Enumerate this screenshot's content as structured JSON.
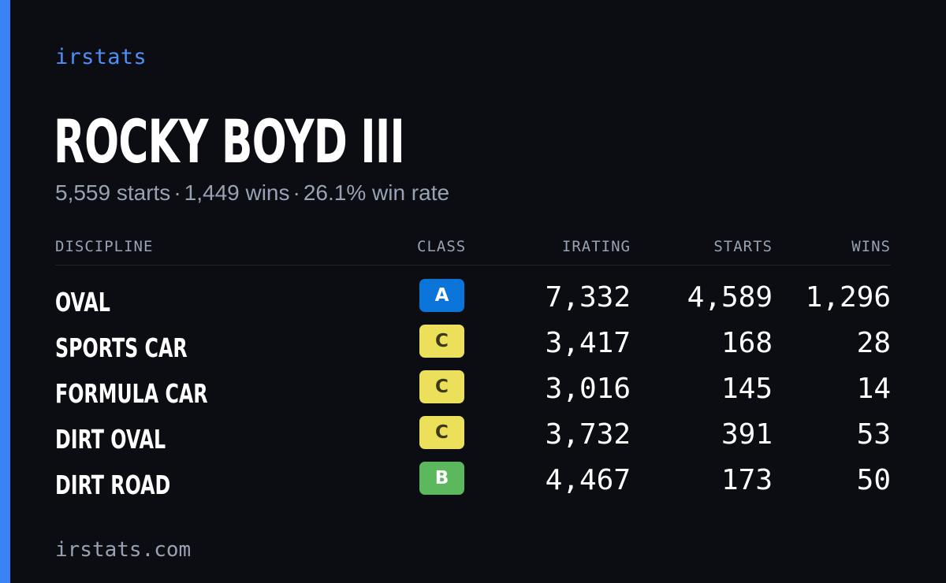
{
  "brand": "irstats",
  "driver": {
    "name": "ROCKY BOYD III"
  },
  "summary": {
    "starts": "5,559 starts",
    "wins": "1,449 wins",
    "win_rate": "26.1% win rate",
    "separator": "·"
  },
  "table": {
    "headers": {
      "discipline": "DISCIPLINE",
      "class": "CLASS",
      "irating": "IRATING",
      "starts": "STARTS",
      "wins": "WINS"
    },
    "rows": [
      {
        "discipline": "OVAL",
        "class": "A",
        "class_color": "#0a74d8",
        "class_text_color": "#ffffff",
        "irating": "7,332",
        "starts": "4,589",
        "wins": "1,296"
      },
      {
        "discipline": "SPORTS CAR",
        "class": "C",
        "class_color": "#ece05a",
        "class_text_color": "#3a3a1a",
        "irating": "3,417",
        "starts": "168",
        "wins": "28"
      },
      {
        "discipline": "FORMULA CAR",
        "class": "C",
        "class_color": "#ece05a",
        "class_text_color": "#3a3a1a",
        "irating": "3,016",
        "starts": "145",
        "wins": "14"
      },
      {
        "discipline": "DIRT OVAL",
        "class": "C",
        "class_color": "#ece05a",
        "class_text_color": "#3a3a1a",
        "irating": "3,732",
        "starts": "391",
        "wins": "53"
      },
      {
        "discipline": "DIRT ROAD",
        "class": "B",
        "class_color": "#5cb85c",
        "class_text_color": "#ffffff",
        "irating": "4,467",
        "starts": "173",
        "wins": "50"
      }
    ]
  },
  "footer": {
    "url": "irstats.com"
  },
  "colors": {
    "background": "#0b0d13",
    "accent": "#3b82f6",
    "brand_text": "#4f8ff7",
    "muted_text": "#98a2b3"
  }
}
